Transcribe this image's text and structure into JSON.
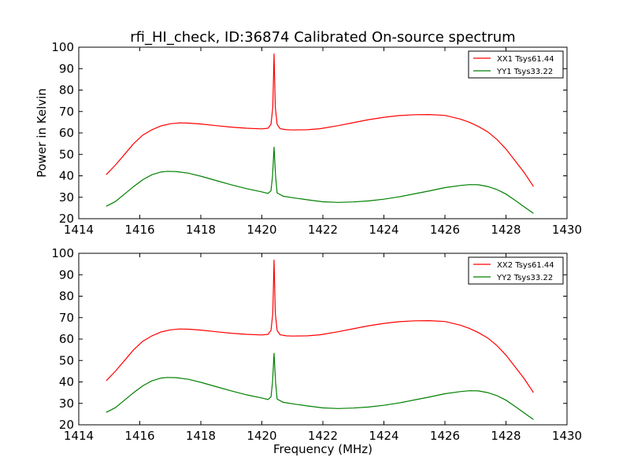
{
  "figure": {
    "title": "rfi_HI_check, ID:36874 Calibrated On-source spectrum",
    "xlabel": "Frequency (MHz)",
    "ylabel": "Power in Kelvin"
  },
  "chart_data": [
    {
      "type": "line",
      "panel": "top",
      "title": "rfi_HI_check, ID:36874 Calibrated On-source spectrum",
      "xlabel": "",
      "ylabel": "Power in Kelvin",
      "xlim": [
        1414,
        1430
      ],
      "ylim": [
        20,
        100
      ],
      "xticks": [
        "1414",
        "1416",
        "1418",
        "1420",
        "1422",
        "1424",
        "1426",
        "1428",
        "1430"
      ],
      "yticks": [
        "20",
        "30",
        "40",
        "50",
        "60",
        "70",
        "80",
        "90",
        "100"
      ],
      "grid": false,
      "legend": "top-right",
      "series": [
        {
          "name": "XX1 Tsys61.44",
          "color": "#ff0000",
          "points": [
            [
              1414.9,
              40.5
            ],
            [
              1415.2,
              45
            ],
            [
              1415.5,
              50
            ],
            [
              1415.8,
              55
            ],
            [
              1416.1,
              59
            ],
            [
              1416.4,
              61.5
            ],
            [
              1416.7,
              63.3
            ],
            [
              1417.0,
              64.3
            ],
            [
              1417.3,
              64.7
            ],
            [
              1417.6,
              64.6
            ],
            [
              1418.0,
              64.2
            ],
            [
              1418.5,
              63.4
            ],
            [
              1419.0,
              62.7
            ],
            [
              1419.5,
              62.2
            ],
            [
              1420.0,
              61.9
            ],
            [
              1420.2,
              62.2
            ],
            [
              1420.3,
              64
            ],
            [
              1420.36,
              72
            ],
            [
              1420.4,
              97
            ],
            [
              1420.44,
              72
            ],
            [
              1420.5,
              64
            ],
            [
              1420.6,
              62
            ],
            [
              1420.8,
              61.5
            ],
            [
              1421.0,
              61.4
            ],
            [
              1421.5,
              61.5
            ],
            [
              1421.9,
              62
            ],
            [
              1422.0,
              62.2
            ],
            [
              1422.5,
              63.4
            ],
            [
              1423.0,
              64.8
            ],
            [
              1423.5,
              66.2
            ],
            [
              1424.0,
              67.3
            ],
            [
              1424.5,
              68.1
            ],
            [
              1425.0,
              68.5
            ],
            [
              1425.5,
              68.6
            ],
            [
              1426.0,
              68.2
            ],
            [
              1426.5,
              66.5
            ],
            [
              1426.8,
              65
            ],
            [
              1427.1,
              63
            ],
            [
              1427.4,
              60.5
            ],
            [
              1427.7,
              57
            ],
            [
              1428.0,
              52.5
            ],
            [
              1428.3,
              47
            ],
            [
              1428.6,
              41.5
            ],
            [
              1428.9,
              35
            ]
          ]
        },
        {
          "name": "YY1 Tsys33.22",
          "color": "#008000",
          "points": [
            [
              1414.9,
              25.8
            ],
            [
              1415.2,
              28
            ],
            [
              1415.5,
              31.5
            ],
            [
              1415.8,
              35
            ],
            [
              1416.1,
              38.2
            ],
            [
              1416.4,
              40.5
            ],
            [
              1416.7,
              41.8
            ],
            [
              1416.9,
              42.1
            ],
            [
              1417.2,
              42
            ],
            [
              1417.6,
              41.2
            ],
            [
              1418.0,
              39.8
            ],
            [
              1418.5,
              37.8
            ],
            [
              1419.0,
              35.8
            ],
            [
              1419.5,
              34
            ],
            [
              1420.0,
              32.5
            ],
            [
              1420.2,
              31.8
            ],
            [
              1420.3,
              33
            ],
            [
              1420.35,
              40
            ],
            [
              1420.4,
              53.5
            ],
            [
              1420.45,
              40
            ],
            [
              1420.5,
              32
            ],
            [
              1420.7,
              30.5
            ],
            [
              1421.0,
              29.8
            ],
            [
              1421.5,
              28.8
            ],
            [
              1422.0,
              27.9
            ],
            [
              1422.5,
              27.6
            ],
            [
              1423.0,
              27.8
            ],
            [
              1423.5,
              28.3
            ],
            [
              1424.0,
              29.1
            ],
            [
              1424.5,
              30.2
            ],
            [
              1425.0,
              31.6
            ],
            [
              1425.5,
              33
            ],
            [
              1426.0,
              34.5
            ],
            [
              1426.5,
              35.5
            ],
            [
              1426.8,
              35.9
            ],
            [
              1427.1,
              35.8
            ],
            [
              1427.4,
              35
            ],
            [
              1427.7,
              33.6
            ],
            [
              1428.0,
              31.5
            ],
            [
              1428.3,
              28.6
            ],
            [
              1428.6,
              25.5
            ],
            [
              1428.9,
              22.5
            ]
          ]
        }
      ]
    },
    {
      "type": "line",
      "panel": "bottom",
      "title": "",
      "xlabel": "Frequency (MHz)",
      "ylabel": "",
      "xlim": [
        1414,
        1430
      ],
      "ylim": [
        20,
        100
      ],
      "xticks": [
        "1414",
        "1416",
        "1418",
        "1420",
        "1422",
        "1424",
        "1426",
        "1428",
        "1430"
      ],
      "yticks": [
        "20",
        "30",
        "40",
        "50",
        "60",
        "70",
        "80",
        "90",
        "100"
      ],
      "grid": false,
      "legend": "top-right",
      "series": [
        {
          "name": "XX2 Tsys61.44",
          "color": "#ff0000",
          "points": [
            [
              1414.9,
              40.5
            ],
            [
              1415.2,
              45
            ],
            [
              1415.5,
              50
            ],
            [
              1415.8,
              55
            ],
            [
              1416.1,
              59
            ],
            [
              1416.4,
              61.5
            ],
            [
              1416.7,
              63.3
            ],
            [
              1417.0,
              64.3
            ],
            [
              1417.3,
              64.7
            ],
            [
              1417.6,
              64.6
            ],
            [
              1418.0,
              64.2
            ],
            [
              1418.5,
              63.4
            ],
            [
              1419.0,
              62.7
            ],
            [
              1419.5,
              62.2
            ],
            [
              1420.0,
              61.9
            ],
            [
              1420.2,
              62.2
            ],
            [
              1420.3,
              64
            ],
            [
              1420.36,
              72
            ],
            [
              1420.4,
              97
            ],
            [
              1420.44,
              72
            ],
            [
              1420.5,
              64
            ],
            [
              1420.6,
              62
            ],
            [
              1420.8,
              61.5
            ],
            [
              1421.0,
              61.4
            ],
            [
              1421.5,
              61.5
            ],
            [
              1421.9,
              62
            ],
            [
              1422.0,
              62.2
            ],
            [
              1422.5,
              63.4
            ],
            [
              1423.0,
              64.8
            ],
            [
              1423.5,
              66.2
            ],
            [
              1424.0,
              67.3
            ],
            [
              1424.5,
              68.1
            ],
            [
              1425.0,
              68.5
            ],
            [
              1425.5,
              68.6
            ],
            [
              1426.0,
              68.2
            ],
            [
              1426.5,
              66.5
            ],
            [
              1426.8,
              65
            ],
            [
              1427.1,
              63
            ],
            [
              1427.4,
              60.5
            ],
            [
              1427.7,
              57
            ],
            [
              1428.0,
              52.5
            ],
            [
              1428.3,
              47
            ],
            [
              1428.6,
              41.5
            ],
            [
              1428.9,
              35
            ]
          ]
        },
        {
          "name": "YY2 Tsys33.22",
          "color": "#008000",
          "points": [
            [
              1414.9,
              25.8
            ],
            [
              1415.2,
              28
            ],
            [
              1415.5,
              31.5
            ],
            [
              1415.8,
              35
            ],
            [
              1416.1,
              38.2
            ],
            [
              1416.4,
              40.5
            ],
            [
              1416.7,
              41.8
            ],
            [
              1416.9,
              42.1
            ],
            [
              1417.2,
              42
            ],
            [
              1417.6,
              41.2
            ],
            [
              1418.0,
              39.8
            ],
            [
              1418.5,
              37.8
            ],
            [
              1419.0,
              35.8
            ],
            [
              1419.5,
              34
            ],
            [
              1420.0,
              32.5
            ],
            [
              1420.2,
              31.8
            ],
            [
              1420.3,
              33
            ],
            [
              1420.35,
              40
            ],
            [
              1420.4,
              53.5
            ],
            [
              1420.45,
              40
            ],
            [
              1420.5,
              32
            ],
            [
              1420.7,
              30.5
            ],
            [
              1421.0,
              29.8
            ],
            [
              1421.5,
              28.8
            ],
            [
              1422.0,
              27.9
            ],
            [
              1422.5,
              27.6
            ],
            [
              1423.0,
              27.8
            ],
            [
              1423.5,
              28.3
            ],
            [
              1424.0,
              29.1
            ],
            [
              1424.5,
              30.2
            ],
            [
              1425.0,
              31.6
            ],
            [
              1425.5,
              33
            ],
            [
              1426.0,
              34.5
            ],
            [
              1426.5,
              35.5
            ],
            [
              1426.8,
              35.9
            ],
            [
              1427.1,
              35.8
            ],
            [
              1427.4,
              35
            ],
            [
              1427.7,
              33.6
            ],
            [
              1428.0,
              31.5
            ],
            [
              1428.3,
              28.6
            ],
            [
              1428.6,
              25.5
            ],
            [
              1428.9,
              22.5
            ]
          ]
        }
      ]
    }
  ]
}
